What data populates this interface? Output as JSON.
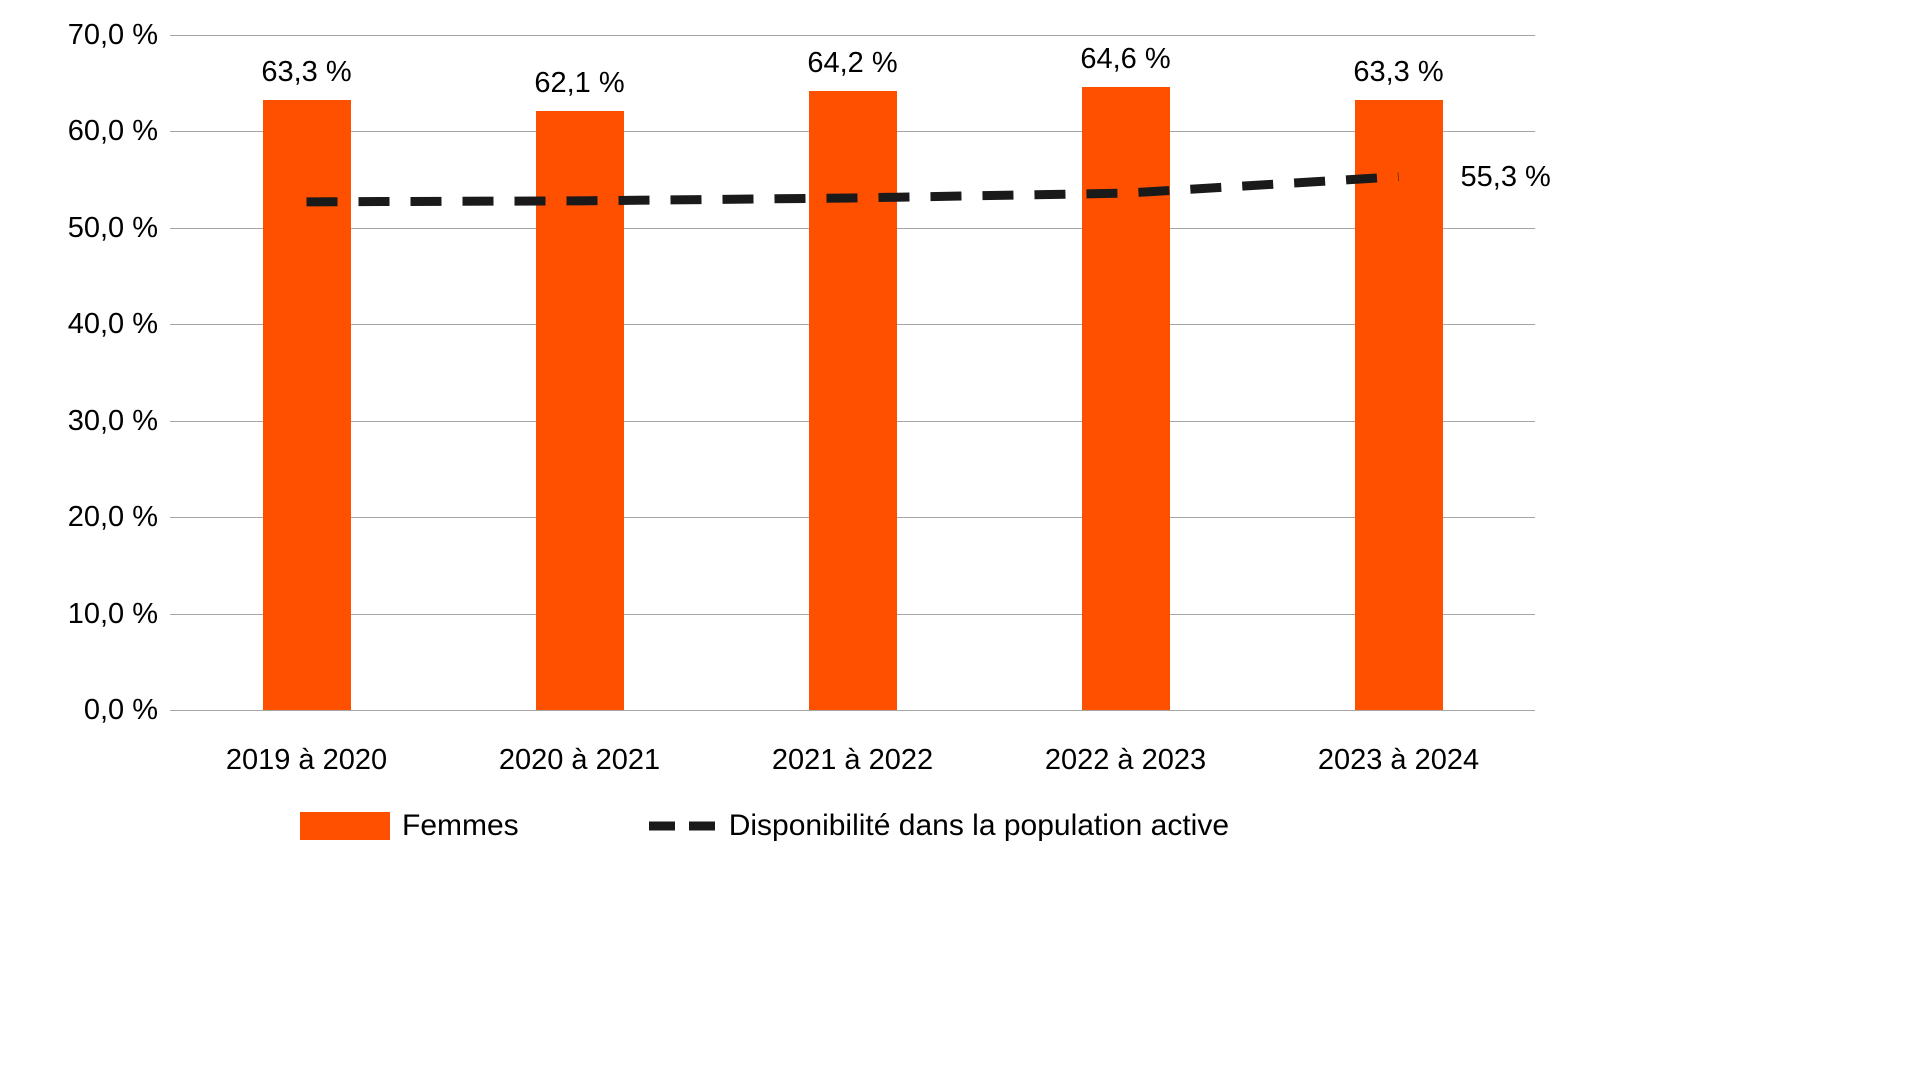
{
  "chart_data": {
    "type": "bar",
    "title": "",
    "xlabel": "",
    "ylabel": "",
    "categories": [
      "2019 à 2020",
      "2020 à 2021",
      "2021 à 2022",
      "2022 à 2023",
      "2023 à 2024"
    ],
    "series": [
      {
        "name": "Femmes",
        "type": "bar",
        "values": [
          63.3,
          62.1,
          64.2,
          64.6,
          63.3
        ],
        "labels": [
          "63,3 %",
          "62,1 %",
          "64,2 %",
          "64,6 %",
          "63,3 %"
        ],
        "color": "#FF5000"
      },
      {
        "name": "Disponibilité dans la population active",
        "type": "dashed-line",
        "values": [
          52.7,
          52.8,
          53.1,
          53.6,
          55.3
        ],
        "end_label": "55,3 %",
        "color": "#1a1a1a"
      }
    ],
    "ylim": [
      0,
      70
    ],
    "ytick_step": 10,
    "ytick_labels": [
      "0,0 %",
      "10,0 %",
      "20,0 %",
      "30,0 %",
      "40,0 %",
      "50,0 %",
      "60,0 %",
      "70,0 %"
    ],
    "grid": true,
    "legend_position": "bottom"
  },
  "legend": {
    "items": [
      {
        "label": "Femmes",
        "swatch": "bar",
        "color": "#FF5000"
      },
      {
        "label": "Disponibilité dans la population active",
        "swatch": "dashed-line",
        "color": "#1a1a1a"
      }
    ]
  },
  "colors": {
    "bar": "#FF5000",
    "line": "#1a1a1a",
    "grid": "#a6a6a6",
    "background": "#ffffff",
    "text": "#000000"
  }
}
